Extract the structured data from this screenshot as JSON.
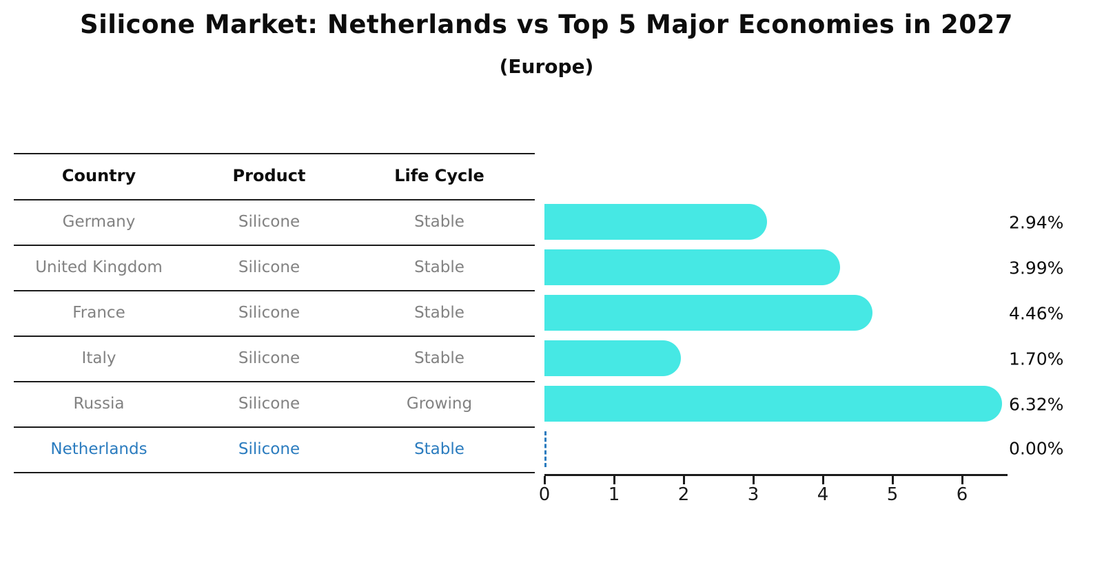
{
  "title": "Silicone Market: Netherlands vs Top 5 Major Economies in 2027",
  "subtitle": "(Europe)",
  "table": {
    "headers": [
      "Country",
      "Product",
      "Life Cycle"
    ],
    "rows": [
      {
        "country": "Germany",
        "product": "Silicone",
        "life_cycle": "Stable",
        "highlight": false
      },
      {
        "country": "United Kingdom",
        "product": "Silicone",
        "life_cycle": "Stable",
        "highlight": false
      },
      {
        "country": "France",
        "product": "Silicone",
        "life_cycle": "Stable",
        "highlight": false
      },
      {
        "country": "Italy",
        "product": "Silicone",
        "life_cycle": "Stable",
        "highlight": false
      },
      {
        "country": "Russia",
        "product": "Silicone",
        "life_cycle": "Growing",
        "highlight": false
      },
      {
        "country": "Netherlands",
        "product": "Silicone",
        "life_cycle": "Stable",
        "highlight": true
      }
    ]
  },
  "chart_data": {
    "type": "bar",
    "orientation": "horizontal",
    "title": "Silicone Market: Netherlands vs Top 5 Major Economies in 2027",
    "subtitle": "(Europe)",
    "categories": [
      "Germany",
      "United Kingdom",
      "France",
      "Italy",
      "Russia",
      "Netherlands"
    ],
    "values": [
      2.94,
      3.99,
      4.46,
      1.7,
      6.32,
      0.0
    ],
    "value_labels": [
      "2.94%",
      "3.99%",
      "4.46%",
      "1.70%",
      "6.32%",
      "0.00%"
    ],
    "xlabel": "",
    "ylabel": "",
    "xlim": [
      0,
      6.65
    ],
    "xticks": [
      0,
      1,
      2,
      3,
      4,
      5,
      6
    ],
    "grid": false,
    "legend": "none",
    "bar_color": "#46e8e4",
    "highlight_color": "#2b7cbf",
    "muted_text_color": "#828282",
    "axis_color": "#1a1a1a",
    "zero_bar_style": "dashed-blue-line"
  }
}
